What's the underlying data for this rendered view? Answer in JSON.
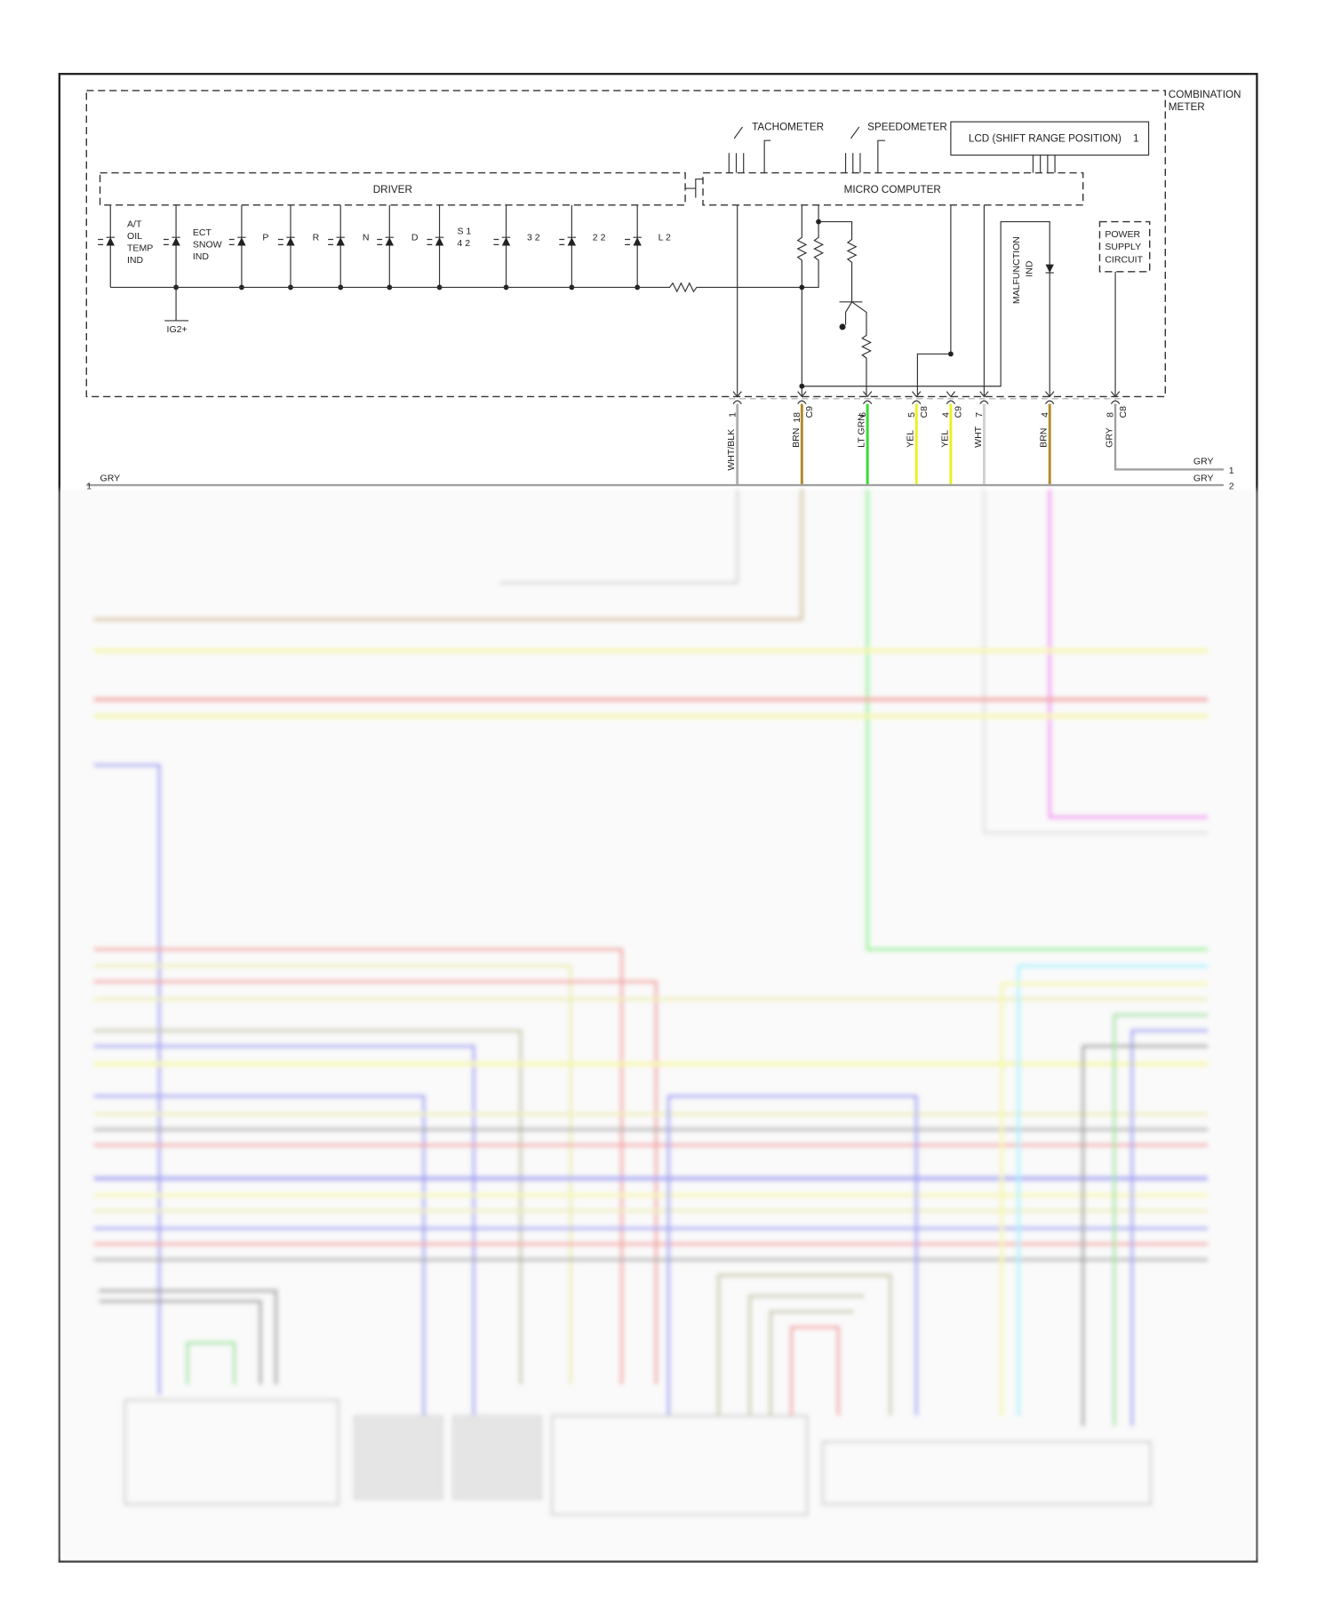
{
  "meter": {
    "title_line1": "COMBINATION",
    "title_line2": "METER",
    "driver": "DRIVER",
    "micro_computer": "MICRO COMPUTER",
    "tachometer": "TACHOMETER",
    "speedometer": "SPEEDOMETER",
    "lcd": "LCD (SHIFT RANGE POSITION)",
    "lcd_num": "1",
    "power_supply": [
      "POWER",
      "SUPPLY",
      "CIRCUIT"
    ],
    "malfunction": [
      "MALFUNCTION",
      "IND"
    ],
    "ig2": "IG2+",
    "indicators": [
      {
        "lines": [
          "A/T",
          "OIL",
          "TEMP",
          "IND"
        ]
      },
      {
        "lines": [
          "ECT",
          "SNOW",
          "IND"
        ]
      },
      {
        "lines": [
          "P"
        ]
      },
      {
        "lines": [
          "R"
        ]
      },
      {
        "lines": [
          "N"
        ]
      },
      {
        "lines": [
          "D"
        ]
      },
      {
        "lines": [
          "S  1",
          "4  2"
        ]
      },
      {
        "lines": [
          "3  2"
        ]
      },
      {
        "lines": [
          "2  2"
        ]
      },
      {
        "lines": [
          "L  2"
        ]
      }
    ]
  },
  "pins": [
    {
      "pin": "1",
      "conn": "",
      "wire": "WHT/BLK",
      "color": "#b0b0b0"
    },
    {
      "pin": "18",
      "conn": "C9",
      "wire": "BRN",
      "color": "#b08a2a"
    },
    {
      "pin": "6",
      "conn": "",
      "wire": "LT GRN",
      "color": "#33dd33"
    },
    {
      "pin": "5",
      "conn": "C8",
      "wire": "YEL",
      "color": "#eeee22"
    },
    {
      "pin": "4",
      "conn": "C9",
      "wire": "YEL",
      "color": "#eeee22"
    },
    {
      "pin": "7",
      "conn": "",
      "wire": "WHT",
      "color": "#d0d0d0"
    },
    {
      "pin": "4",
      "conn": "",
      "wire": "BRN",
      "color": "#b08a2a"
    },
    {
      "pin": "8",
      "conn": "C8",
      "wire": "GRY",
      "color": "#a0a0a0"
    }
  ],
  "gry_lines": [
    {
      "left_num": "1",
      "left_label": "GRY",
      "right_label": "GRY",
      "right_num": "2"
    },
    {
      "right_label": "GRY",
      "right_num": "1"
    }
  ]
}
